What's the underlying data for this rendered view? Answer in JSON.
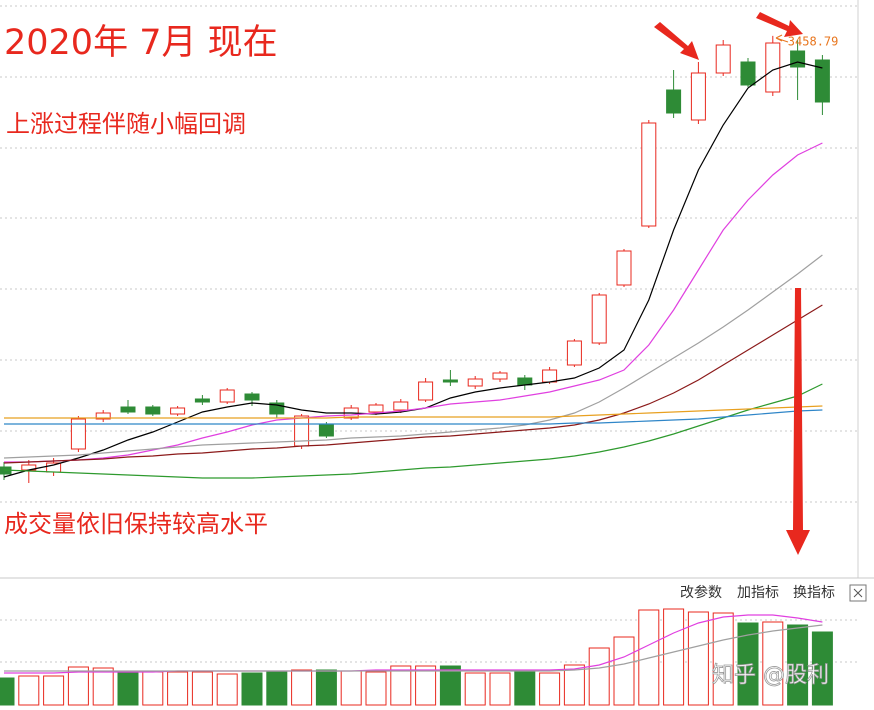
{
  "chart_data": [
    {
      "type": "candlestick",
      "title": "2020年 7月 现在",
      "annotations": [
        "上涨过程伴随小幅回调",
        "成交量依旧保持较高水平"
      ],
      "categories": [
        null,
        null,
        null,
        null,
        null,
        null,
        null,
        null,
        null,
        null,
        null,
        null,
        null,
        null,
        null,
        null,
        null,
        null,
        null,
        null,
        null,
        null,
        null,
        null,
        null,
        null,
        null,
        null,
        null,
        null,
        null,
        null,
        null,
        null
      ],
      "open": [
        2855.2,
        2851,
        2848.2,
        2880.4,
        2922.4,
        2939.2,
        2939.2,
        2929.4,
        2950.4,
        2946.2,
        2957.4,
        2944.8,
        2884.6,
        2915.4,
        2923.8,
        2932.2,
        2935,
        2949,
        2977,
        2968.6,
        2978.4,
        2979.8,
        2974.2,
        2998,
        3028.8,
        3110,
        3192.6,
        3383,
        3341,
        3406.8,
        3422.2,
        3380.2,
        3437.6,
        3425
      ],
      "high": [
        2862.2,
        2865,
        2867.8,
        2926.6,
        2935,
        2949,
        2942,
        2940.6,
        2956,
        2965.8,
        2960.2,
        2949,
        2929.4,
        2918.2,
        2942,
        2944.8,
        2950.4,
        2979.8,
        2991,
        2982.6,
        2989.6,
        2984,
        2995.2,
        3034.4,
        3098.8,
        3160.4,
        3341,
        3411,
        3422.2,
        3453,
        3427.8,
        3458.79,
        3453,
        3432
      ],
      "low": [
        2837,
        2832.8,
        2842.6,
        2876.2,
        2918.2,
        2929.4,
        2926.6,
        2926.6,
        2942,
        2943.4,
        2940.6,
        2923.8,
        2880.4,
        2895.8,
        2921,
        2928,
        2930.8,
        2946.2,
        2968.6,
        2964.4,
        2974.2,
        2963,
        2971.4,
        2995.2,
        3026,
        3107.2,
        3189.8,
        3343.8,
        3335.4,
        3402.6,
        3387.2,
        3374.6,
        3369,
        3348
      ],
      "close": [
        2845.4,
        2858,
        2860.8,
        2922.4,
        2930.8,
        2932.2,
        2929.4,
        2937.8,
        2946.2,
        2963,
        2949,
        2929.4,
        2926.6,
        2898.6,
        2937.8,
        2942,
        2946.2,
        2974.2,
        2974.2,
        2978.4,
        2986.8,
        2970,
        2991,
        3031.6,
        3096,
        3157.6,
        3336.8,
        3350.8,
        3406.8,
        3446,
        3390,
        3448.8,
        3415.2,
        3366.2
      ],
      "up_color": "#e8281e",
      "down_color": "#2e8b36",
      "label_color": "#e8761e",
      "ylim": [
        2702.6,
        3509
      ],
      "series": [
        {
          "color": "#000000",
          "values": [
            2841.2,
            2851,
            2858,
            2867.8,
            2879,
            2893,
            2904.2,
            2918.2,
            2932.2,
            2939.2,
            2944.8,
            2942,
            2935,
            2930.8,
            2930.8,
            2929.4,
            2932.2,
            2937.8,
            2951.8,
            2960.2,
            2965.8,
            2970,
            2974.2,
            2979.8,
            2993.8,
            3019,
            3089,
            3187,
            3271,
            3334,
            3385.8,
            3411,
            3422.2,
            3413.8
          ]
        },
        {
          "color": "#e040e0",
          "values": [
            2862.2,
            2862.2,
            2863.6,
            2865,
            2867.8,
            2872,
            2879,
            2886,
            2895.8,
            2904.2,
            2914,
            2921,
            2923.8,
            2926.6,
            2928,
            2930.8,
            2933.6,
            2937.8,
            2943.4,
            2946.2,
            2949,
            2954.6,
            2960.2,
            2968.6,
            2977,
            2991,
            3026,
            3075,
            3131,
            3187,
            3229,
            3264,
            3292,
            3308.8
          ]
        },
        {
          "color": "#a0a0a0",
          "values": [
            2867.8,
            2869.2,
            2870.6,
            2872,
            2874.8,
            2877.6,
            2880.4,
            2883.2,
            2886,
            2887.4,
            2888.8,
            2890.2,
            2891.6,
            2893,
            2895.8,
            2897.2,
            2898.6,
            2901.4,
            2904.2,
            2907,
            2909.8,
            2914,
            2921,
            2930.8,
            2946.2,
            2965.8,
            2986.8,
            3007.8,
            3028.8,
            3051.2,
            3075,
            3100.2,
            3125.4,
            3152
          ]
        },
        {
          "color": "#8b1a1a",
          "values": [
            2860.8,
            2862.2,
            2863.6,
            2865,
            2866.4,
            2869.2,
            2870.6,
            2873.4,
            2874.8,
            2877.6,
            2880.4,
            2881.8,
            2884.6,
            2886,
            2888.8,
            2891.6,
            2894.4,
            2897.2,
            2898.6,
            2901.4,
            2904.2,
            2907,
            2909.8,
            2914,
            2921,
            2930.8,
            2943.4,
            2958.8,
            2977,
            2998,
            3019,
            3040,
            3061,
            3082
          ]
        },
        {
          "color": "#2e9a2e",
          "values": [
            2851,
            2849.6,
            2848.2,
            2846.8,
            2845.4,
            2844,
            2842.6,
            2841.2,
            2839.8,
            2839.8,
            2839.8,
            2841.2,
            2842.6,
            2844,
            2845.4,
            2848.2,
            2851,
            2853.8,
            2855.2,
            2858,
            2860.8,
            2863.6,
            2866.4,
            2870.6,
            2876.2,
            2883.2,
            2891.6,
            2901.4,
            2912.6,
            2923.8,
            2935,
            2944.8,
            2954.6,
            2971.4
          ]
        },
        {
          "color": "#e8a020",
          "values": [
            2923.8,
            2923.8,
            2923.8,
            2923.8,
            2923.8,
            2923.8,
            2923.8,
            2923.8,
            2923.8,
            2923.8,
            2923.8,
            2923.8,
            2923.8,
            2923.8,
            2925.2,
            2925.2,
            2925.2,
            2925.2,
            2925.2,
            2925.2,
            2925.2,
            2925.2,
            2925.2,
            2926.6,
            2928,
            2929.4,
            2930.8,
            2932.2,
            2933.6,
            2935,
            2936.4,
            2937.8,
            2939.2,
            2940.6
          ]
        },
        {
          "color": "#2f86c8",
          "values": [
            2915.4,
            2915.4,
            2915.4,
            2915.4,
            2915.4,
            2915.4,
            2915.4,
            2915.4,
            2915.4,
            2915.4,
            2915.4,
            2915.4,
            2915.4,
            2915.4,
            2915.4,
            2915.4,
            2915.4,
            2915.4,
            2915.4,
            2915.4,
            2915.4,
            2915.4,
            2915.4,
            2916.8,
            2916.8,
            2918.2,
            2919.6,
            2921,
            2922.4,
            2925.2,
            2928,
            2930.8,
            2933.6,
            2935
          ]
        }
      ]
    },
    {
      "type": "bar",
      "categories": [
        null,
        null,
        null,
        null,
        null,
        null,
        null,
        null,
        null,
        null,
        null,
        null,
        null,
        null,
        null,
        null,
        null,
        null,
        null,
        null,
        null,
        null,
        null,
        null,
        null,
        null,
        null,
        null,
        null,
        null,
        null,
        null,
        null,
        null
      ],
      "values": [
        27,
        29,
        29,
        38,
        37,
        33,
        33,
        33,
        33,
        31,
        32,
        33,
        35,
        35,
        34,
        33,
        39,
        39,
        39,
        32,
        32,
        33,
        32,
        40,
        57,
        68,
        95,
        96,
        93,
        92,
        82,
        83,
        80,
        73
      ],
      "colors": [
        "#2e8b36",
        "#e8281e",
        "#e8281e",
        "#e8281e",
        "#e8281e",
        "#2e8b36",
        "#e8281e",
        "#e8281e",
        "#e8281e",
        "#e8281e",
        "#2e8b36",
        "#2e8b36",
        "#e8281e",
        "#2e8b36",
        "#e8281e",
        "#e8281e",
        "#e8281e",
        "#e8281e",
        "#2e8b36",
        "#e8281e",
        "#e8281e",
        "#2e8b36",
        "#e8281e",
        "#e8281e",
        "#e8281e",
        "#e8281e",
        "#e8281e",
        "#e8281e",
        "#e8281e",
        "#e8281e",
        "#2e8b36",
        "#e8281e",
        "#2e8b36",
        "#2e8b36"
      ],
      "hollow_color": "#e8281e",
      "ylim": [
        0,
        100
      ],
      "series": [
        {
          "color": "#e040e0",
          "values": [
            32,
            32,
            32,
            33,
            33,
            33,
            33,
            34,
            34,
            34,
            34,
            34,
            34,
            34,
            34,
            35,
            35,
            35,
            35,
            35,
            35,
            35,
            35,
            36,
            40,
            48,
            60,
            72,
            82,
            88,
            90,
            90,
            87,
            83
          ]
        },
        {
          "color": "#a0a0a0",
          "values": [
            34,
            34,
            34,
            34,
            34,
            34,
            34,
            34,
            34,
            34,
            34,
            34,
            34,
            34,
            34,
            34,
            34,
            34,
            34,
            34,
            34,
            34,
            34,
            35,
            37,
            41,
            47,
            53,
            59,
            65,
            70,
            74,
            77,
            80
          ]
        }
      ]
    }
  ],
  "toolbar": [
    "改参数",
    "加指标",
    "换指标"
  ],
  "watermark": "知乎 @股利"
}
